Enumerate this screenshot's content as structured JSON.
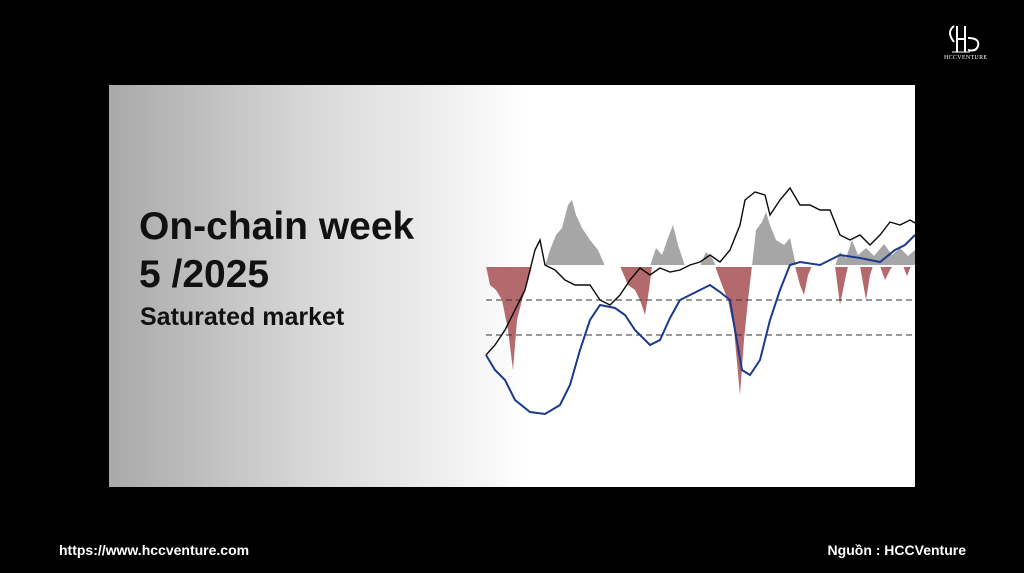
{
  "header": {
    "logo": "HCCVENTURE"
  },
  "card": {
    "title_lines": [
      "On-chain week",
      "5 /2025"
    ],
    "subtitle": "Saturated market"
  },
  "footer": {
    "url": "https://www.hccventure.com",
    "source": "Nguồn : HCCVenture"
  }
}
